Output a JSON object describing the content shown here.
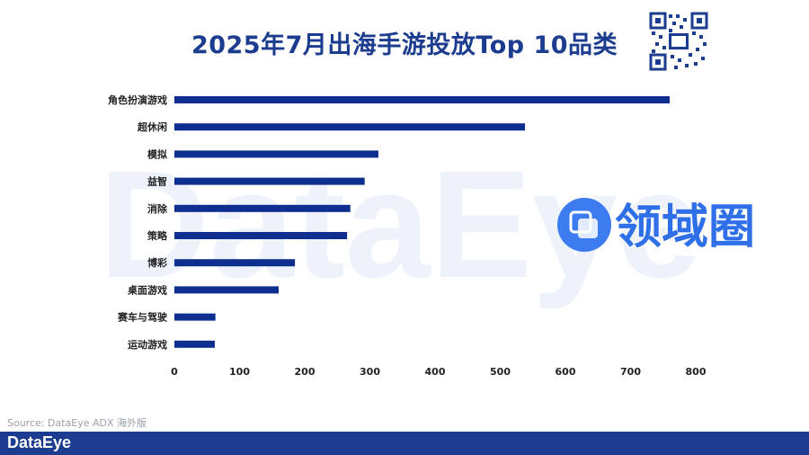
{
  "chart_data": {
    "type": "bar",
    "orientation": "horizontal",
    "title": "2025年7月出海手游投放Top 10品类",
    "categories": [
      "角色扮演游戏",
      "超休闲",
      "模拟",
      "益智",
      "消除",
      "策略",
      "博彩",
      "桌面游戏",
      "赛车与驾驶",
      "运动游戏"
    ],
    "values": [
      760,
      538,
      313,
      292,
      270,
      265,
      185,
      160,
      63,
      62
    ],
    "xlim": [
      0,
      800
    ],
    "xticks": [
      0,
      100,
      200,
      300,
      400,
      500,
      600,
      700,
      800
    ],
    "bar_color": "#0e2f8f",
    "grid": false,
    "legend": "none"
  },
  "source": "Source: DataEye ADX 海外版",
  "footer": {
    "brand": "DataEye"
  },
  "watermark": {
    "brand_text": "DataEye",
    "label": "领域圈"
  },
  "colors": {
    "title": "#1c3d8f",
    "footer": "#1c3d8f",
    "bar": "#0e2f8f"
  }
}
